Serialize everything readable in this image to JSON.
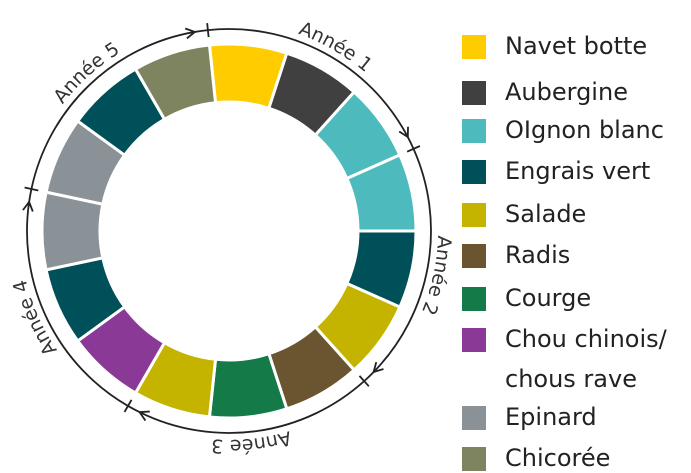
{
  "ring": {
    "colors": [
      "#ffcc00",
      "#404040",
      "#4dbbbd",
      "#4dbbbd",
      "#00505a",
      "#c4b400",
      "#6b5530",
      "#137a48",
      "#c4b400",
      "#8a3a96",
      "#00505a",
      "#8a9298",
      "#8a9298",
      "#00505a",
      "#7e8360"
    ]
  },
  "years": [
    "Année 1",
    "Année 2",
    "Année 3",
    "Année 4",
    "Année 5"
  ],
  "legend": [
    {
      "label": [
        "Navet botte"
      ],
      "color": "#ffcc00"
    },
    {
      "label": [
        "Aubergine"
      ],
      "color": "#404040"
    },
    {
      "label": [
        "OIgnon blanc"
      ],
      "color": "#4dbbbd"
    },
    {
      "label": [
        "Engrais vert"
      ],
      "color": "#00505a"
    },
    {
      "label": [
        "Salade"
      ],
      "color": "#c4b400"
    },
    {
      "label": [
        "Radis"
      ],
      "color": "#6b5530"
    },
    {
      "label": [
        "Courge"
      ],
      "color": "#137a48"
    },
    {
      "label": [
        "Chou chinois/",
        "chous rave"
      ],
      "color": "#8a3a96"
    },
    {
      "label": [
        "Epinard"
      ],
      "color": "#8a9298"
    },
    {
      "label": [
        "Chicorée"
      ],
      "color": "#7e8360"
    }
  ]
}
